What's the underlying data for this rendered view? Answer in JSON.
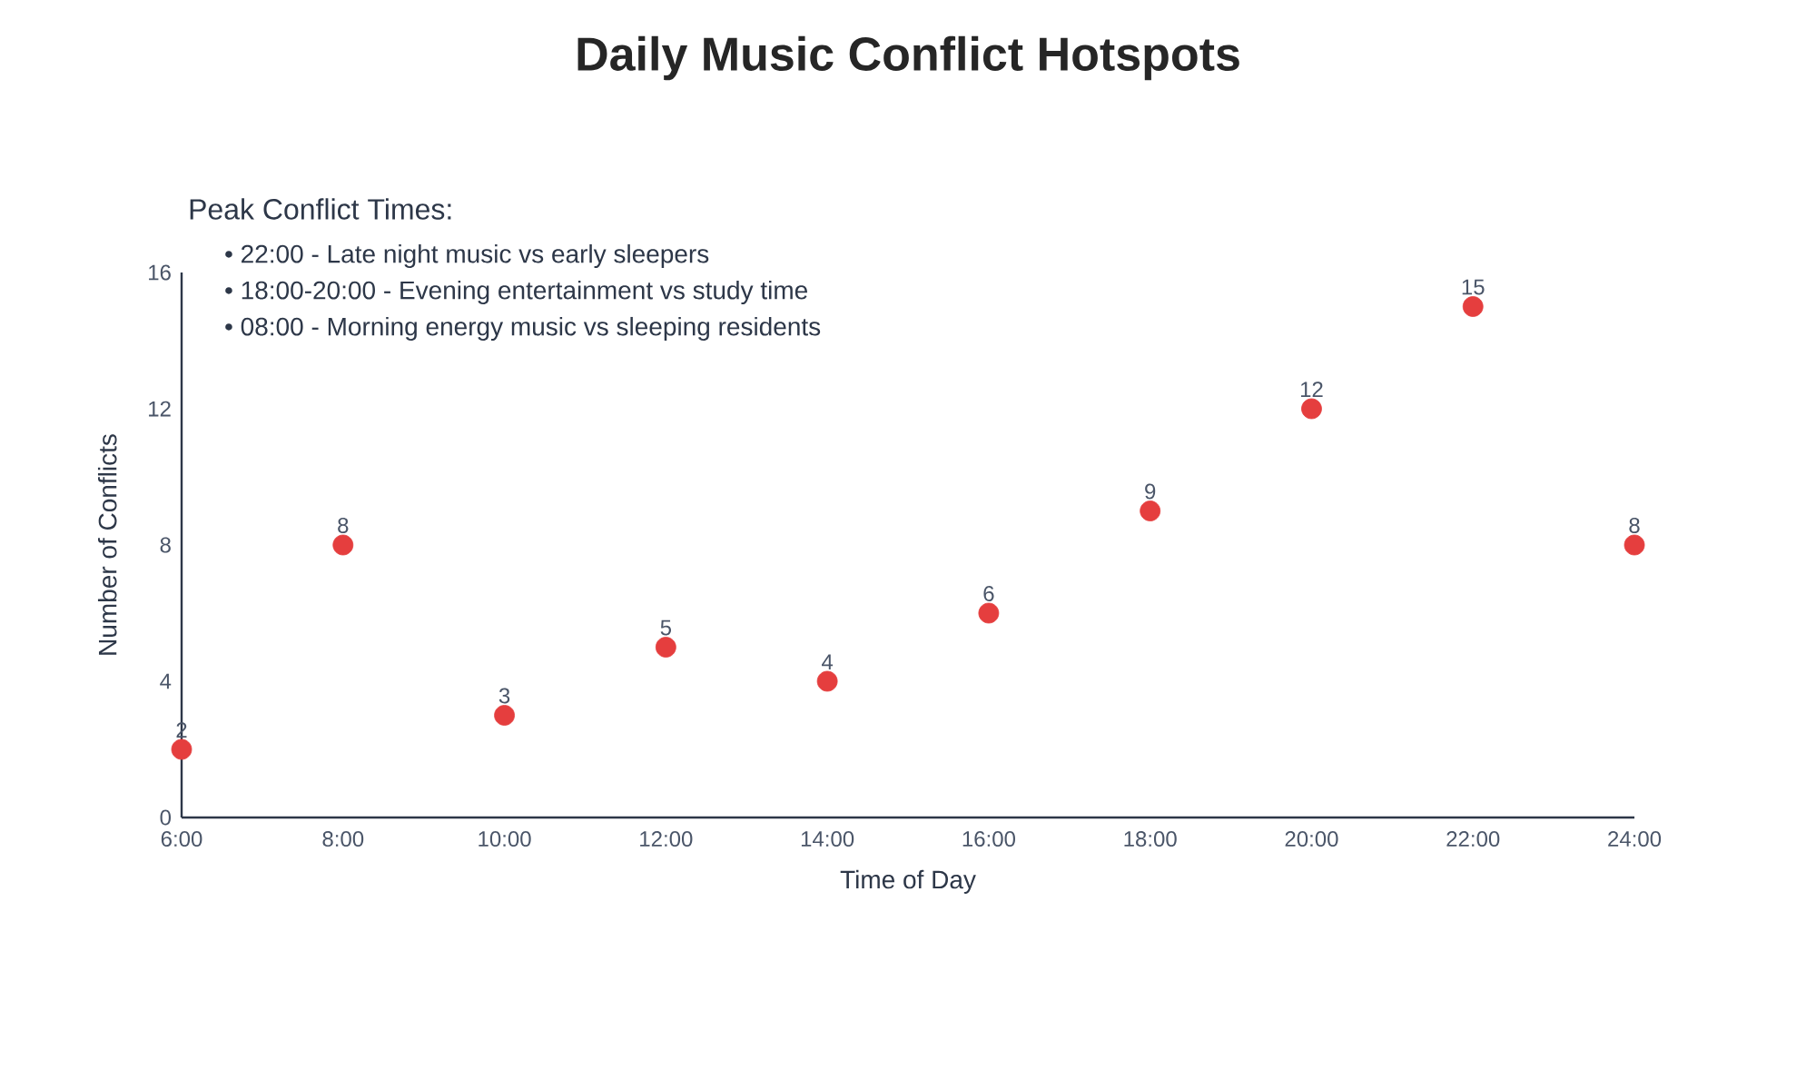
{
  "chart_data": {
    "type": "scatter",
    "title": "Daily Music Conflict Hotspots",
    "xlabel": "Time of Day",
    "ylabel": "Number of Conflicts",
    "x": [
      6,
      8,
      10,
      12,
      14,
      16,
      18,
      20,
      22,
      24
    ],
    "values": [
      2,
      8,
      3,
      5,
      4,
      6,
      9,
      12,
      15,
      8
    ],
    "color": "#e53e3e",
    "marker": "circle",
    "data_labels": true,
    "xlim": [
      6,
      24
    ],
    "xticks": [
      {
        "value": 6,
        "label": "6:00"
      },
      {
        "value": 8,
        "label": "8:00"
      },
      {
        "value": 10,
        "label": "10:00"
      },
      {
        "value": 12,
        "label": "12:00"
      },
      {
        "value": 14,
        "label": "14:00"
      },
      {
        "value": 16,
        "label": "16:00"
      },
      {
        "value": 18,
        "label": "18:00"
      },
      {
        "value": 20,
        "label": "20:00"
      },
      {
        "value": 22,
        "label": "22:00"
      },
      {
        "value": 24,
        "label": "24:00"
      }
    ],
    "ylim": [
      0,
      16
    ],
    "yticks": [
      0,
      4,
      8,
      12,
      16
    ],
    "annotations": [
      "Peak Conflict Times:",
      "• 22:00 - Late night music vs early sleepers",
      "• 18:00-20:00 - Evening entertainment vs study time",
      "• 08:00 - Morning energy music vs sleeping residents"
    ]
  }
}
